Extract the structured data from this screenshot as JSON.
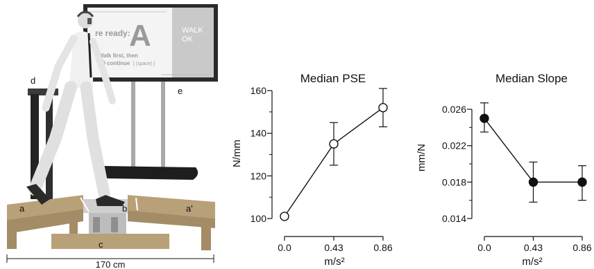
{
  "scene": {
    "labels": {
      "a": "a",
      "a_prime": "a'",
      "b": "b",
      "c": "c",
      "d": "d",
      "e": "e"
    },
    "dimension": "170 cm",
    "screen": {
      "ready_text": "re ready:",
      "big_letter": "A",
      "walk_first": "Walk first, then",
      "continue_text": "continue",
      "continue_hint": "[ (space) ]",
      "walk_ok": "WALK\nOK"
    }
  },
  "chart_data": [
    {
      "type": "line",
      "title": "Median PSE",
      "xlabel": "m/s²",
      "ylabel": "N/mm",
      "categories": [
        "0.0",
        "0.43",
        "0.86"
      ],
      "x": [
        0.0,
        0.43,
        0.86
      ],
      "values": [
        101,
        135,
        152
      ],
      "error_low": [
        100,
        125,
        143
      ],
      "error_high": [
        102,
        145,
        161
      ],
      "yticks": [
        "100",
        "120",
        "140",
        "160"
      ],
      "ylim": [
        100,
        160
      ],
      "marker": "open-circle",
      "grid": false
    },
    {
      "type": "line",
      "title": "Median Slope",
      "xlabel": "m/s²",
      "ylabel": "mm/N",
      "categories": [
        "0.0",
        "0.43",
        "0.86"
      ],
      "x": [
        0.0,
        0.43,
        0.86
      ],
      "values": [
        0.025,
        0.018,
        0.018
      ],
      "error_low": [
        0.0235,
        0.0158,
        0.016
      ],
      "error_high": [
        0.0267,
        0.0202,
        0.0198
      ],
      "yticks": [
        "0.014",
        "0.018",
        "0.022",
        "0.026"
      ],
      "ylim": [
        0.014,
        0.026
      ],
      "marker": "filled-circle",
      "grid": false
    }
  ]
}
